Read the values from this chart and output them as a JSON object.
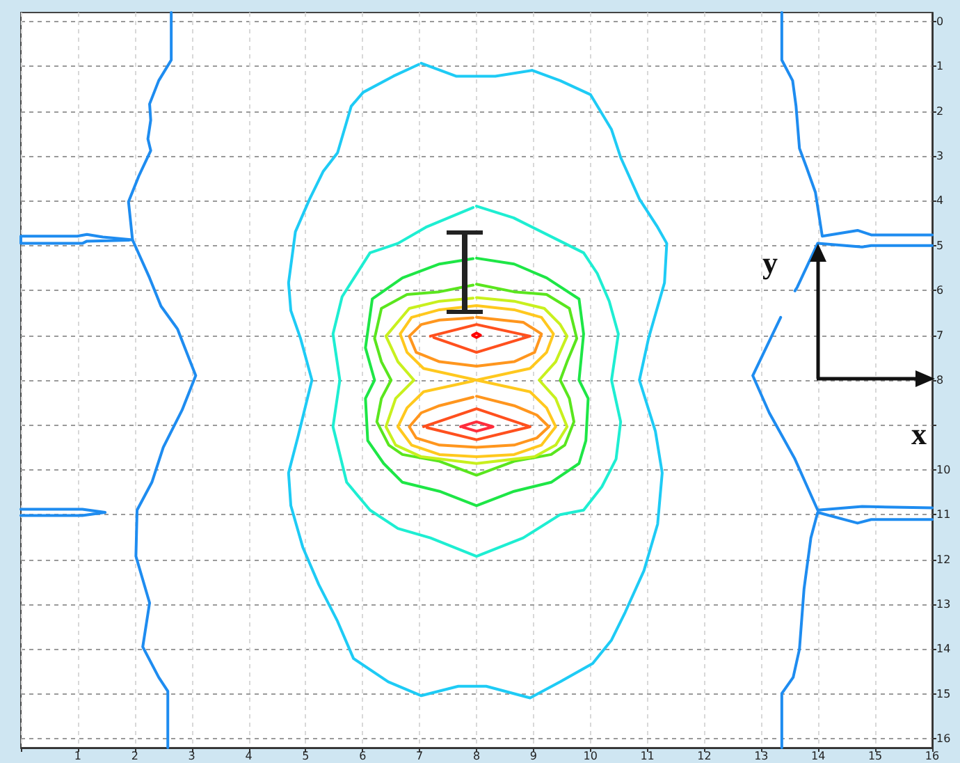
{
  "chart_data": {
    "type": "line",
    "marker": "none",
    "line_style": "solid",
    "grid": true,
    "legend": false,
    "xlim": [
      0,
      16
    ],
    "xticks": [
      {
        "value": 0,
        "label": null
      },
      1,
      2,
      3,
      4,
      5,
      6,
      7,
      8,
      9,
      10,
      11,
      12,
      13,
      14,
      15,
      16
    ],
    "ylim": [
      16.2,
      -0.2
    ],
    "yticks": [
      0,
      1,
      2,
      3,
      4,
      5,
      6,
      7,
      8,
      {
        "value": 9,
        "label": null
      },
      10,
      11,
      12,
      13,
      14,
      15,
      16
    ],
    "annotations": [
      "y",
      "x"
    ],
    "series": [
      {
        "color": "#1ecbf5",
        "x": [
          7.03,
          7.64,
          8.33,
          8.98,
          9.47,
          10.0,
          10.37,
          10.53,
          10.86,
          11.18,
          11.34,
          11.3,
          11.02,
          10.86,
          11.14,
          11.26,
          11.18,
          10.94,
          10.61,
          10.37,
          10.04,
          9.47,
          8.94,
          8.17,
          7.68,
          7.03,
          6.45,
          5.84,
          5.56,
          5.23,
          4.95,
          4.74,
          4.7,
          4.87,
          5.11,
          4.91,
          4.74,
          4.7,
          4.82,
          5.07,
          5.31,
          5.56,
          5.8,
          6.01,
          6.54,
          6.98
        ],
        "values": [
          0.93,
          1.22,
          1.22,
          1.09,
          1.32,
          1.63,
          2.41,
          3.03,
          3.96,
          4.59,
          4.95,
          5.83,
          7.07,
          8.0,
          9.14,
          10.07,
          11.21,
          12.25,
          13.18,
          13.8,
          14.32,
          14.73,
          15.09,
          14.83,
          14.83,
          15.04,
          14.73,
          14.21,
          13.38,
          12.56,
          11.73,
          10.8,
          10.07,
          9.24,
          8.0,
          7.07,
          6.45,
          5.83,
          4.69,
          3.96,
          3.34,
          2.93,
          1.89,
          1.58,
          1.22,
          0.96
        ]
      },
      {
        "color": "#1eeed2",
        "x": [
          8.0,
          8.65,
          9.47,
          9.88,
          10.12,
          10.33,
          10.49,
          10.37,
          10.53,
          10.45,
          10.2,
          9.88,
          9.47,
          8.82,
          8.0,
          7.19,
          6.62,
          6.13,
          5.72,
          5.48,
          5.6,
          5.48,
          5.64,
          6.13,
          6.62,
          7.11,
          7.94
        ],
        "values": [
          4.12,
          4.38,
          4.9,
          5.16,
          5.62,
          6.24,
          6.97,
          8.0,
          8.93,
          9.76,
          10.38,
          10.9,
          11.0,
          11.52,
          11.93,
          11.52,
          11.31,
          10.9,
          10.28,
          9.04,
          8.0,
          6.97,
          6.14,
          5.16,
          4.95,
          4.59,
          4.15
        ]
      },
      {
        "color": "#1ee646",
        "x": [
          8.0,
          8.66,
          9.23,
          9.8,
          9.88,
          9.8,
          9.96,
          9.92,
          9.8,
          9.31,
          8.66,
          8.0,
          7.35,
          6.7,
          6.37,
          6.09,
          6.05,
          6.21,
          6.05,
          6.17,
          6.7,
          7.35,
          7.94
        ],
        "values": [
          5.28,
          5.41,
          5.72,
          6.19,
          6.97,
          8.0,
          8.41,
          9.35,
          9.86,
          10.28,
          10.48,
          10.8,
          10.48,
          10.28,
          9.86,
          9.35,
          8.41,
          8.0,
          7.28,
          6.19,
          5.72,
          5.41,
          5.29
        ]
      },
      {
        "color": "#5ae61e",
        "x": [
          8.0,
          8.66,
          9.23,
          9.63,
          9.76,
          9.59,
          9.47,
          9.63,
          9.71,
          9.55,
          9.31,
          8.66,
          8.0,
          7.35,
          6.7,
          6.46,
          6.25,
          6.33,
          6.5,
          6.33,
          6.21,
          6.33,
          6.78,
          7.35,
          7.94
        ],
        "values": [
          5.86,
          6.03,
          6.09,
          6.4,
          7.07,
          7.59,
          8.0,
          8.41,
          8.93,
          9.45,
          9.66,
          9.81,
          10.12,
          9.81,
          9.66,
          9.45,
          8.93,
          8.41,
          8.0,
          7.59,
          7.07,
          6.4,
          6.09,
          6.03,
          5.88
        ]
      },
      {
        "color": "#c8f01e",
        "x": [
          8.0,
          8.66,
          9.19,
          9.47,
          9.59,
          9.39,
          9.1,
          9.39,
          9.59,
          9.39,
          9.02,
          8.0,
          7.03,
          6.58,
          6.41,
          6.58,
          6.9,
          6.62,
          6.41,
          6.58,
          6.82,
          7.35,
          7.94
        ],
        "values": [
          6.16,
          6.24,
          6.4,
          6.76,
          7.02,
          7.59,
          8.0,
          8.41,
          9.04,
          9.45,
          9.71,
          9.86,
          9.71,
          9.45,
          9.04,
          8.41,
          8.0,
          7.59,
          7.02,
          6.76,
          6.4,
          6.24,
          6.17
        ]
      },
      {
        "color": "#ffc81e",
        "x": [
          8.0,
          8.94,
          9.23,
          9.35,
          9.14,
          8.66,
          8.0,
          7.35,
          6.86,
          6.66,
          6.78,
          7.07,
          8.0,
          8.94,
          9.23,
          9.39,
          9.14,
          8.66,
          8.0,
          7.35,
          6.86,
          6.62,
          6.78,
          7.07,
          7.94
        ],
        "values": [
          8.0,
          7.74,
          7.38,
          6.97,
          6.6,
          6.43,
          6.34,
          6.43,
          6.6,
          6.97,
          7.38,
          7.74,
          8.0,
          8.26,
          8.62,
          9.04,
          9.45,
          9.66,
          9.71,
          9.66,
          9.45,
          9.04,
          8.62,
          8.26,
          8.02
        ]
      },
      {
        "color": "#ff961e",
        "x": [
          8.0,
          8.82,
          9.14,
          9.02,
          8.66,
          8.0,
          7.35,
          6.94,
          6.82,
          7.03,
          7.35,
          7.94
        ],
        "values": [
          6.6,
          6.71,
          6.97,
          7.38,
          7.59,
          7.69,
          7.59,
          7.38,
          7.02,
          6.76,
          6.66,
          6.61
        ]
      },
      {
        "color": "#ff961e",
        "x": [
          8.0,
          8.66,
          9.06,
          9.27,
          9.06,
          8.66,
          8.0,
          7.35,
          6.94,
          6.82,
          7.03,
          7.35,
          7.94
        ],
        "values": [
          8.36,
          8.57,
          8.78,
          9.04,
          9.29,
          9.45,
          9.5,
          9.45,
          9.29,
          9.04,
          8.73,
          8.57,
          8.38
        ]
      },
      {
        "color": "#ff501e",
        "x": [
          7.19,
          8.0,
          8.94,
          8.0,
          7.25
        ],
        "values": [
          7.02,
          6.76,
          7.02,
          7.38,
          7.05
        ]
      },
      {
        "color": "#ff501e",
        "x": [
          7.07,
          8.0,
          8.94,
          8.0,
          7.13
        ],
        "values": [
          9.04,
          8.64,
          9.04,
          9.33,
          9.06
        ]
      },
      {
        "color": "#ff0000",
        "x": [
          7.93,
          8.0,
          8.07,
          8.0,
          7.94
        ],
        "values": [
          7.0,
          6.95,
          7.0,
          7.05,
          7.01
        ]
      },
      {
        "color": "#ff2d3c",
        "x": [
          7.72,
          8.0,
          8.29,
          8.0,
          7.76
        ],
        "values": [
          9.04,
          8.93,
          9.04,
          9.14,
          9.05
        ]
      },
      {
        "color": "#1e8cf0",
        "x": [
          2.64,
          2.64,
          2.42,
          2.26,
          2.28,
          2.23,
          2.28,
          2.07,
          1.89,
          1.96,
          2.26,
          2.46,
          2.75,
          3.07,
          2.83,
          2.5,
          2.3,
          2.04,
          2.02,
          2.26,
          2.14,
          2.42,
          2.58,
          2.58
        ],
        "values": [
          -0.2,
          0.86,
          1.32,
          1.84,
          2.2,
          2.62,
          2.88,
          3.45,
          4.02,
          4.87,
          5.72,
          6.35,
          6.86,
          7.9,
          8.67,
          9.5,
          10.28,
          10.9,
          11.93,
          12.97,
          13.95,
          14.63,
          14.94,
          16.2
        ]
      },
      {
        "color": "#1e8cf0",
        "x": [
          1.96,
          1.44,
          1.16,
          0.99,
          0,
          0,
          1.08,
          1.16,
          1.9
        ],
        "values": [
          4.87,
          4.81,
          4.75,
          4.79,
          4.79,
          4.95,
          4.95,
          4.9,
          4.88
        ]
      },
      {
        "color": "#1e8cf0",
        "x": [
          0,
          1.08,
          1.48,
          1.08,
          0
        ],
        "values": [
          10.88,
          10.88,
          10.95,
          11.02,
          11.02
        ]
      },
      {
        "color": "#1e8cf0",
        "x": [
          13.36,
          13.36,
          13.55,
          13.61,
          13.67,
          13.79,
          13.95,
          14.07,
          14.69,
          14.93,
          16
        ],
        "values": [
          -0.2,
          0.86,
          1.32,
          1.89,
          2.83,
          3.24,
          3.81,
          4.79,
          4.66,
          4.76,
          4.76
        ]
      },
      {
        "color": "#1e8cf0",
        "x": [
          16,
          14.93,
          14.77,
          13.99,
          13.63,
          13.59,
          null,
          13.34,
          12.85,
          13.14,
          13.59,
          13.99,
          14.77,
          16
        ],
        "values": [
          5.0,
          5.0,
          5.03,
          4.95,
          5.93,
          6.01,
          null,
          6.6,
          7.9,
          8.73,
          9.76,
          10.9,
          10.82,
          10.85
        ]
      },
      {
        "color": "#1e8cf0",
        "x": [
          16,
          14.93,
          14.69,
          13.99,
          13.87,
          13.75,
          13.67,
          13.56,
          13.36,
          13.36
        ],
        "values": [
          11.11,
          11.11,
          11.19,
          10.95,
          11.52,
          12.66,
          14.0,
          14.63,
          14.99,
          16.2
        ]
      }
    ]
  }
}
